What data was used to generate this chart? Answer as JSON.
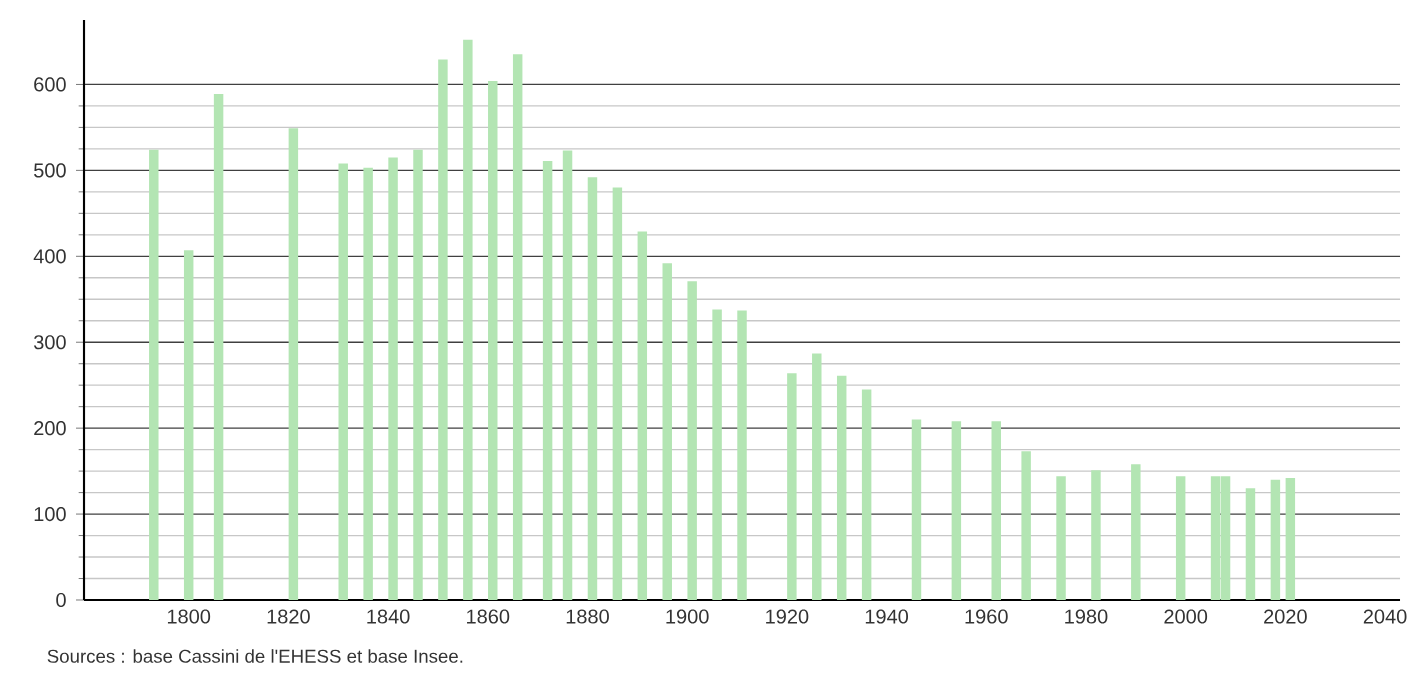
{
  "chart_data": {
    "type": "bar",
    "color": "#b3e5b3",
    "x": [
      1793,
      1800,
      1806,
      1821,
      1831,
      1836,
      1841,
      1846,
      1851,
      1856,
      1861,
      1866,
      1872,
      1876,
      1881,
      1886,
      1891,
      1896,
      1901,
      1906,
      1911,
      1921,
      1926,
      1931,
      1936,
      1946,
      1954,
      1962,
      1968,
      1975,
      1982,
      1990,
      1999,
      2006,
      2008,
      2013,
      2018,
      2021
    ],
    "values": [
      524,
      407,
      589,
      549,
      508,
      503,
      515,
      524,
      629,
      652,
      604,
      635,
      511,
      523,
      492,
      480,
      429,
      392,
      371,
      338,
      337,
      264,
      287,
      261,
      245,
      210,
      208,
      208,
      173,
      144,
      151,
      158,
      144,
      144,
      144,
      130,
      140,
      142
    ],
    "xlim": [
      1779,
      2043
    ],
    "xticks": [
      1800,
      1820,
      1840,
      1860,
      1880,
      1900,
      1920,
      1940,
      1960,
      1980,
      2000,
      2020,
      2040
    ],
    "ylim": [
      0,
      675
    ],
    "yticks": [
      0,
      100,
      200,
      300,
      400,
      500,
      600
    ],
    "grid": "y",
    "annotations": [
      "Sources : base Cassini de l'EHESS et base Insee."
    ]
  }
}
